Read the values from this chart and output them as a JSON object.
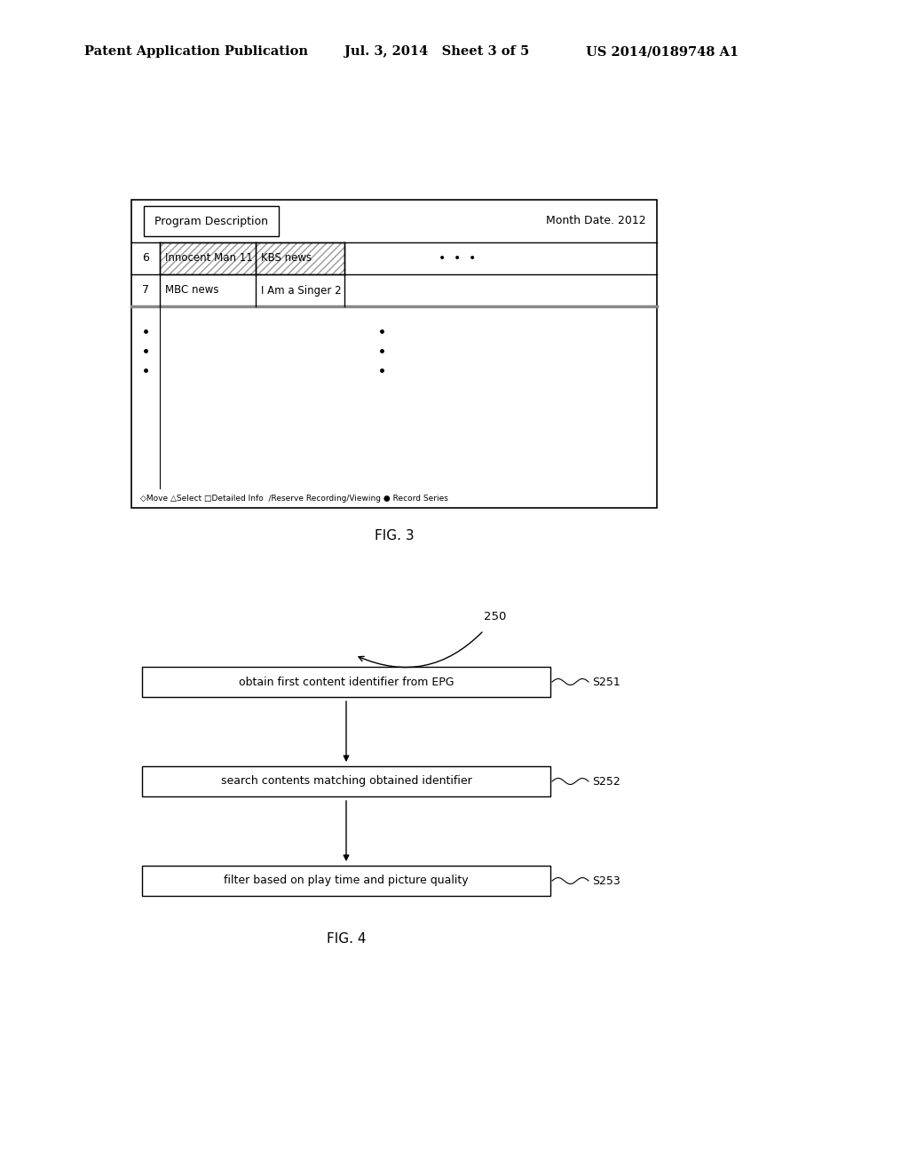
{
  "background_color": "#ffffff",
  "header_left": "Patent Application Publication",
  "header_mid": "Jul. 3, 2014   Sheet 3 of 5",
  "header_right": "US 2014/0189748 A1",
  "fig3_label": "FIG. 3",
  "fig4_label": "FIG. 4",
  "table_title": "Program Description",
  "table_date": "Month Date. 2012",
  "row1_num": "6",
  "row1_col1": "Innocent Man 11",
  "row1_col2": "KBS news",
  "row2_num": "7",
  "row2_col1": "MBC news",
  "row2_col2": "I Am a Singer 2",
  "legend_text": "◇Move △Select □Detailed Info  ∕Reserve Recording/Viewing ● Record Series",
  "flow_label": "250",
  "steps": [
    {
      "id": "S251",
      "text": "obtain first content identifier from EPG"
    },
    {
      "id": "S252",
      "text": "search contents matching obtained identifier"
    },
    {
      "id": "S253",
      "text": "filter based on play time and picture quality"
    }
  ]
}
